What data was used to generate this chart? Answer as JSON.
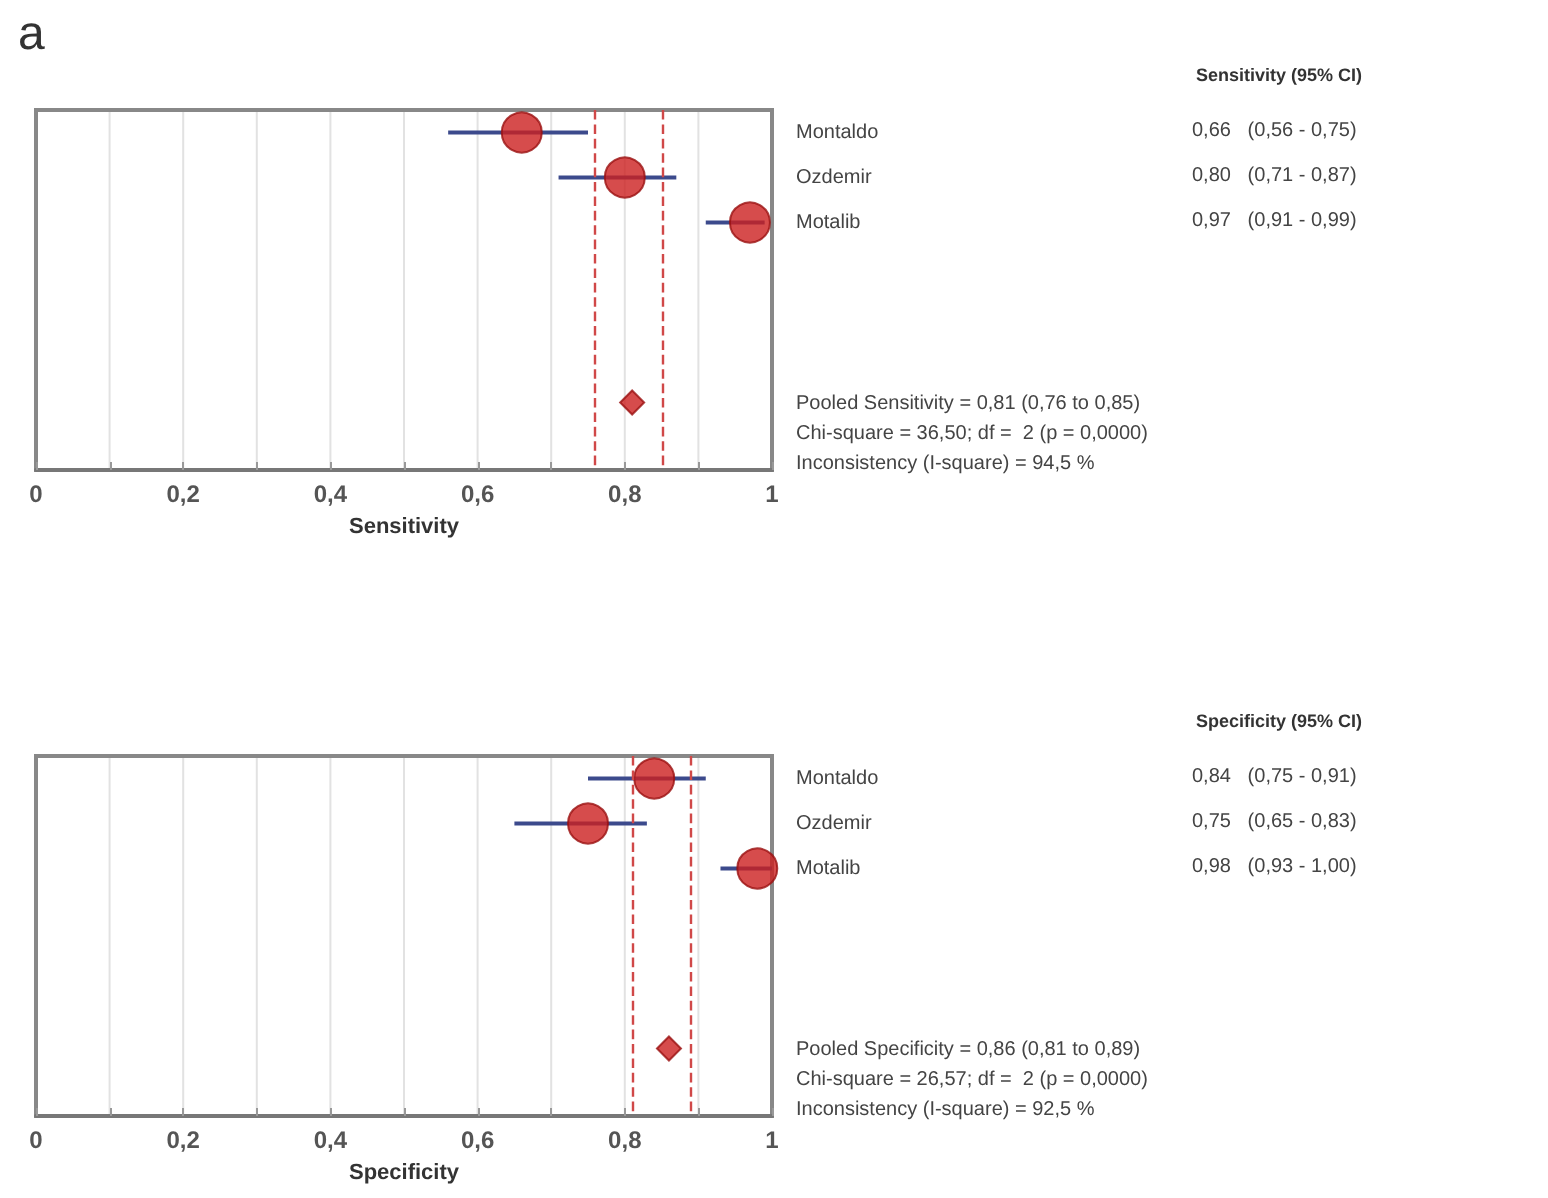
{
  "chart_data": [
    {
      "type": "scatter",
      "orientation": "horizontal",
      "title": "a",
      "xlabel": "Sensitivity",
      "categories": [
        "Montaldo",
        "Ozdemir",
        "Motalib",
        null,
        null,
        null,
        null,
        null
      ],
      "xlim": [
        0,
        1
      ],
      "xticks": [
        {
          "value": 0,
          "label": "0"
        },
        {
          "value": 0.1,
          "label": null
        },
        {
          "value": 0.2,
          "label": "0,2"
        },
        {
          "value": 0.3,
          "label": null
        },
        {
          "value": 0.4,
          "label": "0,4"
        },
        {
          "value": 0.5,
          "label": null
        },
        {
          "value": 0.6,
          "label": "0,6"
        },
        {
          "value": 0.7,
          "label": null
        },
        {
          "value": 0.8,
          "label": "0,8"
        },
        {
          "value": 0.9,
          "label": null
        },
        1
      ],
      "grid": "x",
      "series": [
        {
          "color": "#cc1f1f",
          "marker": "circle",
          "values": [
            0.66,
            0.8,
            0.97,
            null,
            null,
            null,
            null,
            null
          ],
          "errors": [
            [
              0.56,
              0.75
            ],
            [
              0.71,
              0.87
            ],
            [
              0.91,
              0.99
            ],
            null,
            null,
            null,
            null,
            null
          ],
          "value_labels": [
            "0,66   (0,56 - 0,75)",
            "0,80   (0,71 - 0,87)",
            "0,97   (0,91 - 0,99)",
            null,
            null,
            null,
            null,
            null
          ]
        },
        {
          "color": "#cc1f1f",
          "marker": "diamond",
          "values": [
            null,
            null,
            null,
            null,
            null,
            null,
            0.81,
            null
          ]
        }
      ],
      "ref_lines": [
        {
          "axis": "x",
          "value": 0.76,
          "color": "#d04848",
          "line_style": "dashed"
        },
        {
          "axis": "x",
          "value": 0.85,
          "color": "#d04848",
          "line_style": "dashed"
        }
      ],
      "annotations": [
        "Sensitivity (95% CI)",
        "Pooled Sensitivity = 0,81 (0,76 to 0,85)",
        "Chi-square = 36,50; df =  2 (p = 0,0000)",
        "Inconsistency (I-square) = 94,5 %"
      ]
    },
    {
      "type": "scatter",
      "orientation": "horizontal",
      "xlabel": "Specificity",
      "categories": [
        "Montaldo",
        "Ozdemir",
        "Motalib",
        null,
        null,
        null,
        null,
        null
      ],
      "xlim": [
        0,
        1
      ],
      "xticks": [
        {
          "value": 0,
          "label": "0"
        },
        {
          "value": 0.1,
          "label": null
        },
        {
          "value": 0.2,
          "label": "0,2"
        },
        {
          "value": 0.3,
          "label": null
        },
        {
          "value": 0.4,
          "label": "0,4"
        },
        {
          "value": 0.5,
          "label": null
        },
        {
          "value": 0.6,
          "label": "0,6"
        },
        {
          "value": 0.7,
          "label": null
        },
        {
          "value": 0.8,
          "label": "0,8"
        },
        {
          "value": 0.9,
          "label": null
        },
        1
      ],
      "grid": "x",
      "series": [
        {
          "color": "#cc1f1f",
          "marker": "circle",
          "values": [
            0.84,
            0.75,
            0.98,
            null,
            null,
            null,
            null,
            null
          ],
          "errors": [
            [
              0.75,
              0.91
            ],
            [
              0.65,
              0.83
            ],
            [
              0.93,
              1.0
            ],
            null,
            null,
            null,
            null,
            null
          ],
          "value_labels": [
            "0,84   (0,75 - 0,91)",
            "0,75   (0,65 - 0,83)",
            "0,98   (0,93 - 1,00)",
            null,
            null,
            null,
            null,
            null
          ]
        },
        {
          "color": "#cc1f1f",
          "marker": "diamond",
          "values": [
            null,
            null,
            null,
            null,
            null,
            null,
            0.86,
            null
          ]
        }
      ],
      "ref_lines": [
        {
          "axis": "x",
          "value": 0.81,
          "color": "#d04848",
          "line_style": "dashed"
        },
        {
          "axis": "x",
          "value": 0.89,
          "color": "#d04848",
          "line_style": "dashed"
        }
      ],
      "annotations": [
        "Specificity (95% CI)",
        "Pooled Specificity = 0,86 (0,81 to 0,89)",
        "Chi-square = 26,57; df =  2 (p = 0,0000)",
        "Inconsistency (I-square) = 92,5 %"
      ]
    }
  ]
}
